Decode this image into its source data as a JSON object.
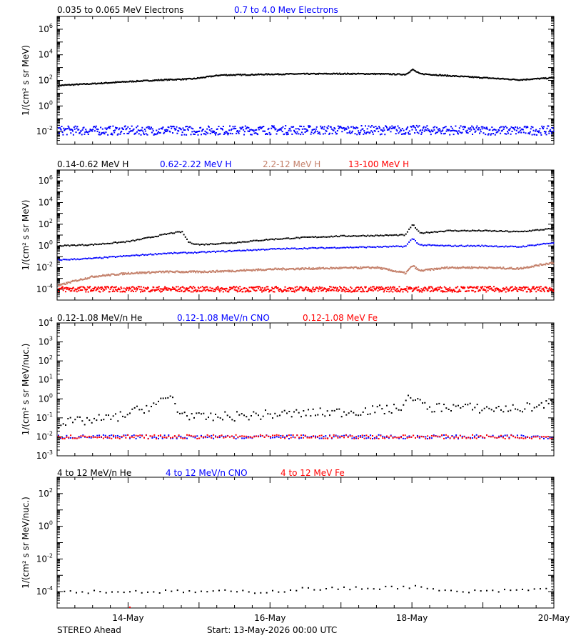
{
  "colors": {
    "black": "#000000",
    "blue": "#0000ff",
    "tan": "#c4806a",
    "red": "#ff0000"
  },
  "footer": {
    "left": "STEREO Ahead",
    "center": "Start: 13-May-2026 00:00 UTC"
  },
  "chart_data": [
    {
      "type": "scatter",
      "panel": "electrons",
      "legend": [
        "0.035 to 0.065 MeV Electrons",
        "0.7 to 4.0 Mev Electrons"
      ],
      "ylabel": "1/(cm² s sr MeV)",
      "yscale": "log",
      "ylim": [
        0.001,
        10000000
      ],
      "y_ticks": [
        {
          "value": 0.01,
          "mant": "10",
          "exp": "-2"
        },
        {
          "value": 1,
          "mant": "10",
          "exp": "0"
        },
        {
          "value": 100,
          "mant": "10",
          "exp": "2"
        },
        {
          "value": 10000,
          "mant": "10",
          "exp": "4"
        },
        {
          "value": 1000000,
          "mant": "10",
          "exp": "6"
        }
      ],
      "series": [
        {
          "name": "0.035 to 0.065 MeV Electrons",
          "color": "#000000",
          "x": [
            0,
            0.5,
            1,
            1.5,
            1.9,
            2.3,
            2.6,
            3,
            3.5,
            4,
            4.5,
            4.9,
            5,
            5.1,
            5.5,
            6,
            6.5,
            7
          ],
          "y": [
            40,
            55,
            80,
            110,
            130,
            260,
            270,
            300,
            320,
            330,
            320,
            290,
            700,
            330,
            230,
            160,
            110,
            160
          ]
        },
        {
          "name": "0.7 to 4.0 Mev Electrons",
          "color": "#0000ff",
          "x": [
            0,
            1,
            2,
            3,
            4,
            5,
            6,
            7
          ],
          "y": [
            0.012,
            0.012,
            0.012,
            0.013,
            0.013,
            0.013,
            0.012,
            0.012
          ]
        }
      ]
    },
    {
      "type": "scatter",
      "panel": "protons",
      "legend": [
        "0.14-0.62 MeV H",
        "0.62-2.22 MeV H",
        "2.2-12 MeV H",
        "13-100 MeV H"
      ],
      "ylabel": "1/(cm² s sr MeV)",
      "yscale": "log",
      "ylim": [
        1e-05,
        10000000
      ],
      "y_ticks": [
        {
          "value": 0.0001,
          "mant": "10",
          "exp": "-4"
        },
        {
          "value": 0.01,
          "mant": "10",
          "exp": "-2"
        },
        {
          "value": 1,
          "mant": "10",
          "exp": "0"
        },
        {
          "value": 100,
          "mant": "10",
          "exp": "2"
        },
        {
          "value": 10000,
          "mant": "10",
          "exp": "4"
        },
        {
          "value": 1000000,
          "mant": "10",
          "exp": "6"
        }
      ],
      "series": [
        {
          "name": "0.14-0.62 MeV H",
          "color": "#000000",
          "x": [
            0,
            0.5,
            1,
            1.3,
            1.6,
            1.75,
            1.85,
            2,
            2.5,
            3,
            3.5,
            4,
            4.5,
            4.9,
            5,
            5.1,
            5.5,
            6,
            6.5,
            7
          ],
          "y": [
            1,
            1.3,
            2.5,
            6,
            15,
            20,
            2,
            1.3,
            2,
            4,
            6,
            8,
            9,
            10,
            100,
            15,
            25,
            25,
            20,
            40
          ]
        },
        {
          "name": "0.62-2.22 MeV H",
          "color": "#0000ff",
          "x": [
            0,
            0.5,
            1,
            1.5,
            2,
            2.5,
            3,
            3.5,
            4,
            4.5,
            4.9,
            5,
            5.1,
            5.5,
            6,
            6.5,
            7
          ],
          "y": [
            0.05,
            0.07,
            0.12,
            0.2,
            0.25,
            0.35,
            0.5,
            0.6,
            0.7,
            0.8,
            0.9,
            5,
            1.2,
            1,
            1,
            0.8,
            2
          ]
        },
        {
          "name": "2.2-12 MeV H",
          "color": "#c4806a",
          "x": [
            0,
            0.2,
            0.5,
            1,
            1.5,
            2,
            2.5,
            3,
            3.5,
            4,
            4.5,
            4.9,
            5,
            5.1,
            5.5,
            6,
            6.5,
            7
          ],
          "y": [
            0.0002,
            0.0005,
            0.0015,
            0.003,
            0.004,
            0.004,
            0.005,
            0.007,
            0.008,
            0.009,
            0.01,
            0.003,
            0.015,
            0.005,
            0.01,
            0.01,
            0.008,
            0.03
          ]
        },
        {
          "name": "13-100 MeV H",
          "color": "#ff0000",
          "x": [
            0,
            1,
            2,
            3,
            4,
            5,
            6,
            7
          ],
          "y": [
            0.0001,
            0.0001,
            0.0001,
            0.0001,
            0.0001,
            0.0001,
            0.0001,
            0.0001
          ]
        }
      ]
    },
    {
      "type": "scatter",
      "panel": "low-energy-ions",
      "legend": [
        "0.12-1.08 MeV/n He",
        "0.12-1.08 MeV/n CNO",
        "0.12-1.08 MeV Fe"
      ],
      "ylabel": "1/(cm² s sr MeV/nuc.)",
      "yscale": "log",
      "ylim": [
        0.001,
        10000
      ],
      "y_ticks": [
        {
          "value": 0.001,
          "mant": "10",
          "exp": "-3"
        },
        {
          "value": 0.01,
          "mant": "10",
          "exp": "-2"
        },
        {
          "value": 0.1,
          "mant": "10",
          "exp": "-1"
        },
        {
          "value": 1,
          "mant": "10",
          "exp": "0"
        },
        {
          "value": 10,
          "mant": "10",
          "exp": "1"
        },
        {
          "value": 100,
          "mant": "10",
          "exp": "2"
        },
        {
          "value": 1000,
          "mant": "10",
          "exp": "3"
        },
        {
          "value": 10000,
          "mant": "10",
          "exp": "4"
        }
      ],
      "series": [
        {
          "name": "0.12-1.08 MeV/n He",
          "color": "#000000",
          "x": [
            0,
            0.8,
            1.2,
            1.5,
            1.6,
            1.7,
            2,
            3,
            4,
            4.8,
            5,
            5.2,
            5.5,
            6,
            6.5,
            7
          ],
          "y": [
            0.05,
            0.1,
            0.3,
            0.8,
            1.5,
            0.2,
            0.1,
            0.15,
            0.2,
            0.3,
            1.5,
            0.3,
            0.4,
            0.3,
            0.3,
            0.6
          ]
        },
        {
          "name": "0.12-1.08 MeV/n CNO",
          "color": "#0000ff",
          "x": [
            0,
            1,
            2,
            3,
            4,
            5,
            6,
            7
          ],
          "y": [
            0.01,
            0.01,
            0.01,
            0.01,
            0.01,
            0.01,
            0.01,
            0.01
          ]
        },
        {
          "name": "0.12-1.08 MeV Fe",
          "color": "#ff0000",
          "x": [
            0,
            1,
            2,
            3,
            4,
            5,
            6,
            7
          ],
          "y": [
            0.01,
            0.01,
            0.01,
            0.01,
            0.01,
            0.01,
            0.01,
            0.01
          ]
        }
      ]
    },
    {
      "type": "scatter",
      "panel": "high-energy-ions",
      "legend": [
        "4 to 12 MeV/n He",
        "4 to 12 MeV/n CNO",
        "4 to 12 MeV Fe"
      ],
      "ylabel": "1/(cm² s sr MeV/nuc.)",
      "yscale": "log",
      "ylim": [
        1e-05,
        1000
      ],
      "y_ticks": [
        {
          "value": 0.0001,
          "mant": "10",
          "exp": "-4"
        },
        {
          "value": 0.01,
          "mant": "10",
          "exp": "-2"
        },
        {
          "value": 1,
          "mant": "10",
          "exp": "0"
        },
        {
          "value": 100,
          "mant": "10",
          "exp": "2"
        }
      ],
      "series": [
        {
          "name": "4 to 12 MeV/n He",
          "color": "#000000",
          "x": [
            0,
            1,
            2,
            3,
            3.5,
            4,
            5,
            5.5,
            6,
            7
          ],
          "y": [
            0.0001,
            0.0001,
            0.0001,
            0.0001,
            0.00015,
            0.00015,
            0.0002,
            0.0001,
            0.0001,
            0.00015
          ]
        },
        {
          "name": "4 to 12 MeV/n CNO",
          "color": "#0000ff",
          "x": [
            0,
            7
          ],
          "y": [
            1e-05,
            1e-05
          ]
        },
        {
          "name": "4 to 12 MeV Fe",
          "color": "#ff0000",
          "x": [
            0,
            7
          ],
          "y": [
            1e-05,
            1e-05
          ]
        }
      ]
    }
  ],
  "x_axis": {
    "range_days": [
      0,
      7
    ],
    "tick_labels": [
      {
        "day": 1,
        "label": "14-May"
      },
      {
        "day": 3,
        "label": "16-May"
      },
      {
        "day": 5,
        "label": "18-May"
      },
      {
        "day": 7,
        "label": "20-May"
      }
    ]
  }
}
